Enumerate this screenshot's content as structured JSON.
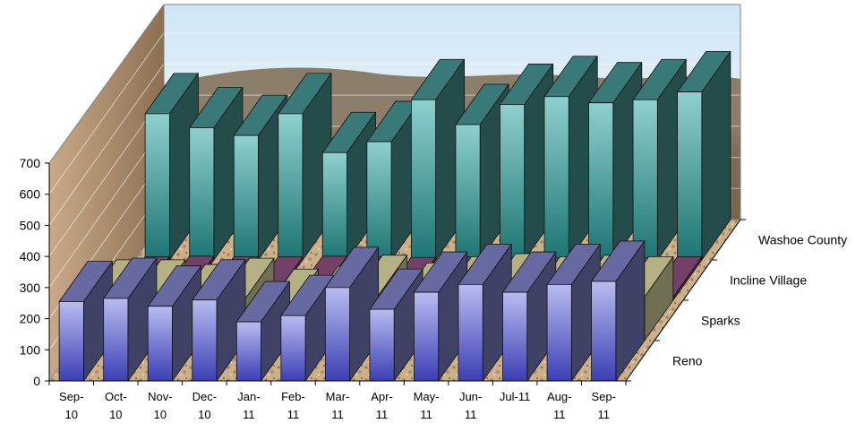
{
  "chart_data": {
    "type": "bar",
    "variant": "3d-column",
    "title": "",
    "xlabel": "",
    "ylabel": "",
    "ylim": [
      0,
      700
    ],
    "yticks": [
      0,
      100,
      200,
      300,
      400,
      500,
      600,
      700
    ],
    "grid": true,
    "legend": "none",
    "categories": [
      "Sep-10",
      "Oct-10",
      "Nov-10",
      "Dec-10",
      "Jan-11",
      "Feb-11",
      "Mar-11",
      "Apr-11",
      "May-11",
      "Jun-11",
      "Jul-11",
      "Aug-11",
      "Sep-11"
    ],
    "category_tick_labels": [
      [
        "Sep-",
        "10"
      ],
      [
        "Oct-",
        "10"
      ],
      [
        "Nov-",
        "10"
      ],
      [
        "Dec-",
        "10"
      ],
      [
        "Jan-",
        "11"
      ],
      [
        "Feb-",
        "11"
      ],
      [
        "Mar-",
        "11"
      ],
      [
        "Apr-",
        "11"
      ],
      [
        "May-",
        "11"
      ],
      [
        "Jun-",
        "11"
      ],
      [
        "Jul-11",
        ""
      ],
      [
        "Aug-",
        "11"
      ],
      [
        "Sep-",
        "11"
      ]
    ],
    "series": [
      {
        "name": "Reno",
        "color": "#8f93e0",
        "values": [
          255,
          265,
          240,
          260,
          190,
          210,
          300,
          230,
          285,
          310,
          285,
          310,
          320
        ]
      },
      {
        "name": "Sparks",
        "color": "#fbf6b8",
        "values": [
          130,
          130,
          115,
          135,
          100,
          110,
          145,
          120,
          140,
          150,
          140,
          145,
          140
        ]
      },
      {
        "name": "Incline Village",
        "color": "#a0598f",
        "values": [
          10,
          12,
          10,
          10,
          12,
          10,
          8,
          10,
          8,
          8,
          8,
          8,
          10
        ]
      },
      {
        "name": "Washoe County",
        "color": "#4fa9a7",
        "values": [
          470,
          425,
          400,
          470,
          345,
          380,
          515,
          435,
          500,
          525,
          505,
          515,
          540
        ]
      }
    ]
  }
}
